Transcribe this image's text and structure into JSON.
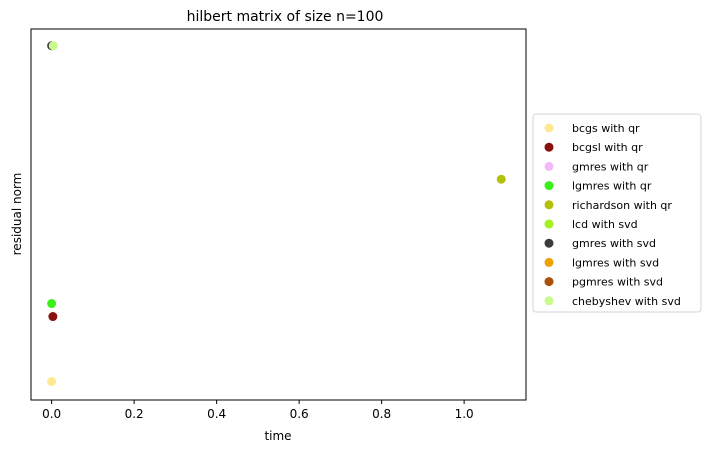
{
  "chart_data": {
    "type": "scatter",
    "title": "hilbert matrix of size n=100",
    "xlabel": "time",
    "ylabel": "residual norm",
    "xlim": [
      -0.05,
      1.15
    ],
    "ylim": [
      0,
      1
    ],
    "x_ticks": [
      0.0,
      0.2,
      0.4,
      0.6,
      0.8,
      1.0
    ],
    "x_tick_labels": [
      "0.0",
      "0.2",
      "0.4",
      "0.6",
      "0.8",
      "1.0"
    ],
    "y_ticks_shown": false,
    "grid": false,
    "legend_position": "right-outside",
    "series": [
      {
        "name": "bcgs with qr",
        "color": "#fde98f",
        "points": [
          {
            "x": 0.0,
            "y": 0.05
          }
        ]
      },
      {
        "name": "bcgsl with qr",
        "color": "#8a1010",
        "points": [
          {
            "x": 0.003,
            "y": 0.225
          }
        ]
      },
      {
        "name": "gmres with qr",
        "color": "#f4b8f8",
        "points": []
      },
      {
        "name": "lgmres with qr",
        "color": "#3af01a",
        "points": [
          {
            "x": 0.0,
            "y": 0.26
          }
        ]
      },
      {
        "name": "richardson with qr",
        "color": "#b5c00a",
        "points": [
          {
            "x": 1.09,
            "y": 0.595
          }
        ]
      },
      {
        "name": "lcd with svd",
        "color": "#a2f01e",
        "points": []
      },
      {
        "name": "gmres with svd",
        "color": "#3c3c3c",
        "points": [
          {
            "x": 0.0,
            "y": 0.955
          }
        ]
      },
      {
        "name": "lgmres with svd",
        "color": "#f0a000",
        "points": []
      },
      {
        "name": "pgmres with svd",
        "color": "#a8520a",
        "points": []
      },
      {
        "name": "chebyshev with svd",
        "color": "#c8fa8c",
        "points": [
          {
            "x": 0.004,
            "y": 0.955
          }
        ]
      }
    ]
  }
}
